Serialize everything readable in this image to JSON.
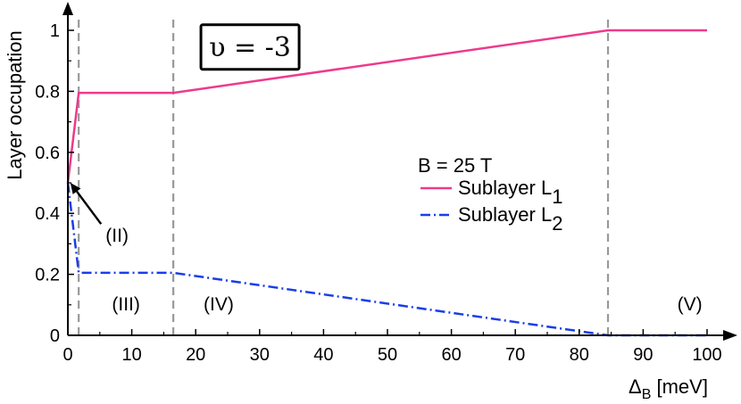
{
  "chart_data": {
    "type": "line",
    "title": "",
    "xlabel": "Δ",
    "xlabel_sub": "B",
    "xlabel_unit": " [meV]",
    "ylabel": "Layer occupation",
    "xlim": [
      0,
      100
    ],
    "ylim": [
      0,
      1
    ],
    "xticks": [
      0,
      10,
      20,
      30,
      40,
      50,
      60,
      70,
      80,
      90,
      100
    ],
    "yticks": [
      0,
      0.2,
      0.4,
      0.6,
      0.8,
      1
    ],
    "ytick_labels": [
      "0",
      "0.2",
      "0.4",
      "0.6",
      "0.8",
      "1"
    ],
    "grid": false,
    "legend": {
      "placement": "center-right",
      "title": "B = 25 T",
      "entries": [
        {
          "text": "Sublayer L",
          "sub": "1"
        },
        {
          "text": "Sublayer L",
          "sub": "2"
        }
      ]
    },
    "series": [
      {
        "name": "Sublayer L1",
        "color": "#ee3a8c",
        "dash": "solid",
        "x": [
          0,
          1.7,
          16.5,
          84.5,
          100
        ],
        "y": [
          0.5,
          0.795,
          0.795,
          1.0,
          1.0
        ]
      },
      {
        "name": "Sublayer L2",
        "color": "#1a3ee8",
        "dash": "dashdot",
        "x": [
          0,
          1.7,
          16.5,
          84.5,
          100
        ],
        "y": [
          0.5,
          0.205,
          0.205,
          0.0,
          0.0
        ]
      }
    ],
    "vlines": [
      1.7,
      16.5,
      84.5
    ],
    "vline_color": "#999999",
    "annotations": [
      {
        "label": "(II)",
        "x": 7.7,
        "y": 0.33
      },
      {
        "label": "(III)",
        "x": 9.1,
        "y": 0.105
      },
      {
        "label": "(IV)",
        "x": 23.6,
        "y": 0.105
      },
      {
        "label": "(V)",
        "x": 97.3,
        "y": 0.105
      }
    ],
    "arrow": {
      "from_x": 5.2,
      "from_y": 0.365,
      "to_x": 0.4,
      "to_y": 0.5
    },
    "boxed_label": {
      "text": "υ = -3",
      "x": 28.5,
      "y": 0.945
    }
  }
}
